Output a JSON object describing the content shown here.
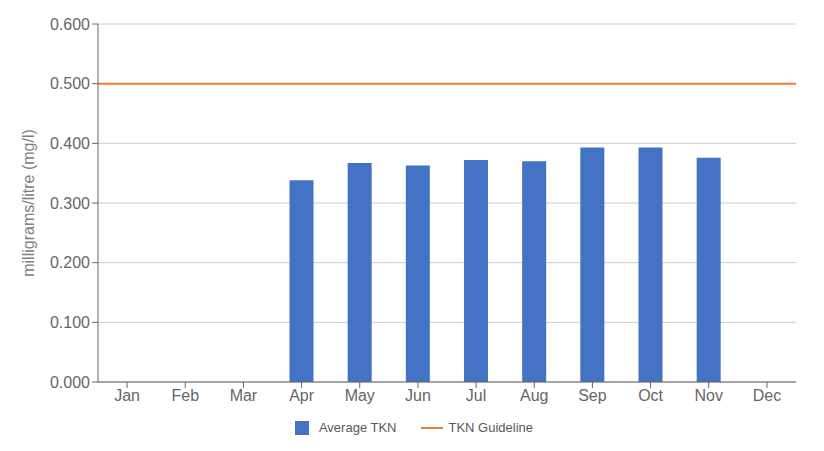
{
  "chart_data": {
    "type": "bar",
    "categories": [
      "Jan",
      "Feb",
      "Mar",
      "Apr",
      "May",
      "Jun",
      "Jul",
      "Aug",
      "Sep",
      "Oct",
      "Nov",
      "Dec"
    ],
    "series": [
      {
        "name": "Average TKN",
        "type": "bar",
        "color": "#4472C4",
        "values": [
          null,
          null,
          null,
          0.338,
          0.367,
          0.363,
          0.372,
          0.37,
          0.393,
          0.393,
          0.376,
          null
        ]
      }
    ],
    "guideline": {
      "name": "TKN Guideline",
      "value": 0.5,
      "color": "#ED7D31"
    },
    "ylabel": "milligrams/litre (mg/l)",
    "ylim": [
      0.0,
      0.6
    ],
    "yticks": [
      {
        "value": 0.0,
        "label": "0.000"
      },
      {
        "value": 0.1,
        "label": "0.100"
      },
      {
        "value": 0.2,
        "label": "0.200"
      },
      {
        "value": 0.3,
        "label": "0.300"
      },
      {
        "value": 0.4,
        "label": "0.400"
      },
      {
        "value": 0.5,
        "label": "0.500"
      },
      {
        "value": 0.6,
        "label": "0.600"
      }
    ],
    "grid": true
  }
}
